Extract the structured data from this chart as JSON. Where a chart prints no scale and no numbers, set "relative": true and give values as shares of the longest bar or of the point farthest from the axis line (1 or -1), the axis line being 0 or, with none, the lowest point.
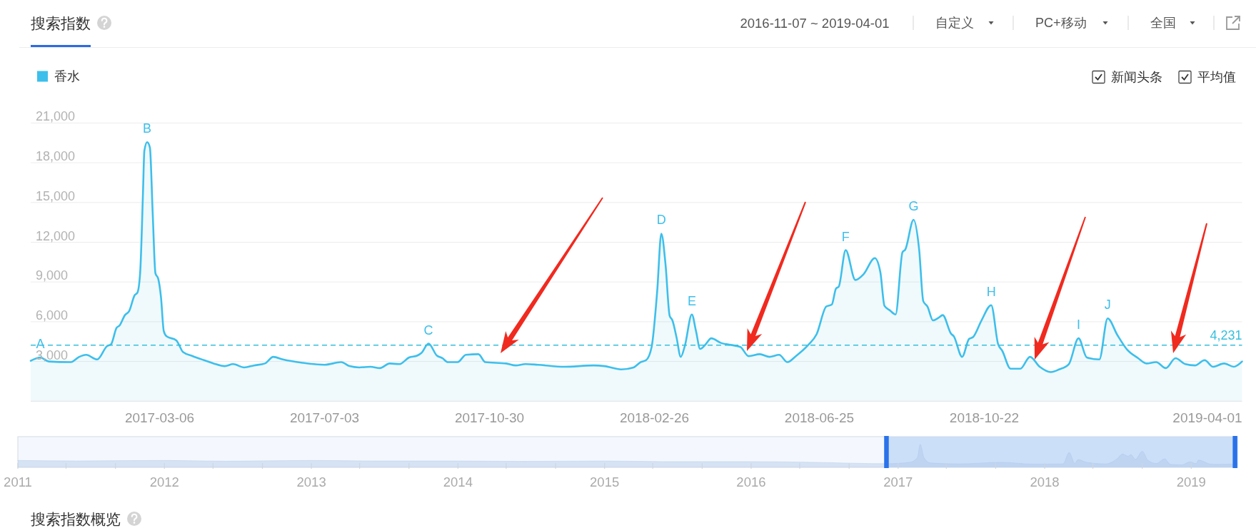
{
  "chart_data": [
    {
      "type": "area",
      "title": "搜索指数",
      "subtitle": "2016-11-07 ~ 2019-04-01",
      "annotations": [
        "自定义",
        "PC+移动",
        "全国",
        "新闻头条",
        "平均值",
        {
          "text": "A",
          "x": "2016-12-10",
          "y": 3300
        },
        {
          "text": "B",
          "x": "2017-02-25",
          "y": 19550
        },
        {
          "text": "C",
          "x": "2017-09-16",
          "y": 4350
        },
        {
          "text": "D",
          "x": "2018-03-03",
          "y": 12650
        },
        {
          "text": "E",
          "x": "2018-03-25",
          "y": 6550
        },
        {
          "text": "F",
          "x": "2018-07-14",
          "y": 11400
        },
        {
          "text": "G",
          "x": "2018-09-01",
          "y": 13700
        },
        {
          "text": "H",
          "x": "2018-10-27",
          "y": 7250
        },
        {
          "text": "I",
          "x": "2018-12-29",
          "y": 4750
        },
        {
          "text": "J",
          "x": "2019-01-19",
          "y": 6250
        }
      ],
      "x": [
        "2016-12-03",
        "2016-12-10",
        "2016-12-16",
        "2017-01-01",
        "2017-01-07",
        "2017-01-12",
        "2017-01-20",
        "2017-01-27",
        "2017-01-30",
        "2017-02-03",
        "2017-02-05",
        "2017-02-09",
        "2017-02-12",
        "2017-02-16",
        "2017-02-18",
        "2017-02-20",
        "2017-02-22",
        "2017-02-23",
        "2017-02-25",
        "2017-02-27",
        "2017-03-01",
        "2017-03-03",
        "2017-03-05",
        "2017-03-07",
        "2017-03-09",
        "2017-03-11",
        "2017-03-18",
        "2017-03-23",
        "2017-03-30",
        "2017-04-07",
        "2017-04-14",
        "2017-04-22",
        "2017-04-28",
        "2017-05-06",
        "2017-05-13",
        "2017-05-21",
        "2017-05-27",
        "2017-06-03",
        "2017-06-17",
        "2017-07-03",
        "2017-07-15",
        "2017-07-21",
        "2017-07-28",
        "2017-08-05",
        "2017-08-12",
        "2017-08-19",
        "2017-08-26",
        "2017-09-02",
        "2017-09-08",
        "2017-09-11",
        "2017-09-16",
        "2017-09-22",
        "2017-09-26",
        "2017-09-30",
        "2017-10-07",
        "2017-10-13",
        "2017-10-22",
        "2017-10-27",
        "2017-11-11",
        "2017-11-18",
        "2017-11-25",
        "2017-12-04",
        "2017-12-23",
        "2018-01-13",
        "2018-01-21",
        "2018-02-02",
        "2018-02-11",
        "2018-02-16",
        "2018-02-20",
        "2018-02-24",
        "2018-02-28",
        "2018-03-03",
        "2018-03-06",
        "2018-03-09",
        "2018-03-11",
        "2018-03-14",
        "2018-03-17",
        "2018-03-20",
        "2018-03-25",
        "2018-03-28",
        "2018-03-31",
        "2018-04-04",
        "2018-04-08",
        "2018-04-15",
        "2018-04-22",
        "2018-04-29",
        "2018-05-05",
        "2018-05-13",
        "2018-05-20",
        "2018-05-27",
        "2018-06-02",
        "2018-06-08",
        "2018-06-17",
        "2018-06-23",
        "2018-06-30",
        "2018-07-04",
        "2018-07-07",
        "2018-07-09",
        "2018-07-14",
        "2018-07-21",
        "2018-07-27",
        "2018-08-04",
        "2018-08-08",
        "2018-08-11",
        "2018-08-15",
        "2018-08-19",
        "2018-08-24",
        "2018-08-26",
        "2018-09-01",
        "2018-09-05",
        "2018-09-08",
        "2018-09-11",
        "2018-09-15",
        "2018-09-19",
        "2018-09-22",
        "2018-09-28",
        "2018-09-30",
        "2018-10-06",
        "2018-10-11",
        "2018-10-14",
        "2018-10-20",
        "2018-10-27",
        "2018-11-01",
        "2018-11-04",
        "2018-11-10",
        "2018-11-17",
        "2018-11-24",
        "2018-12-01",
        "2018-12-09",
        "2018-12-15",
        "2018-12-22",
        "2018-12-29",
        "2019-01-04",
        "2019-01-13",
        "2019-01-19",
        "2019-01-26",
        "2019-02-02",
        "2019-02-10",
        "2019-02-16",
        "2019-02-23",
        "2019-03-02",
        "2019-03-09",
        "2019-03-16",
        "2019-03-23",
        "2019-03-30",
        "2019-04-05",
        "2019-04-13",
        "2019-04-20",
        "2019-04-26"
      ],
      "series": [
        {
          "name": "香水",
          "color": "#3dbfeb",
          "values": [
            3050,
            3300,
            3000,
            2950,
            3350,
            3500,
            3150,
            4150,
            4300,
            5550,
            5700,
            6500,
            6800,
            8000,
            8200,
            9750,
            15700,
            18900,
            19550,
            19150,
            14250,
            9650,
            9250,
            7850,
            5300,
            4900,
            4600,
            3700,
            3400,
            3100,
            2850,
            2650,
            2800,
            2550,
            2700,
            2850,
            3350,
            3150,
            2900,
            2750,
            2950,
            2650,
            2550,
            2600,
            2500,
            2850,
            2800,
            3300,
            3450,
            3650,
            4350,
            3450,
            3250,
            2950,
            2950,
            3500,
            3550,
            2950,
            2850,
            2700,
            2800,
            2750,
            2600,
            2700,
            2650,
            2400,
            2550,
            2950,
            3100,
            4100,
            8300,
            12650,
            10350,
            6450,
            6100,
            4800,
            3350,
            4200,
            6550,
            5300,
            3950,
            4300,
            4750,
            4400,
            4250,
            4100,
            3400,
            3550,
            3350,
            3500,
            2950,
            3400,
            4250,
            5050,
            7150,
            7300,
            8500,
            8650,
            11400,
            9150,
            9600,
            10800,
            9750,
            7200,
            6850,
            6550,
            11250,
            11450,
            13700,
            11450,
            7550,
            7150,
            6100,
            6300,
            6500,
            5100,
            4900,
            3350,
            4700,
            4850,
            6100,
            7250,
            4300,
            3800,
            2450,
            2450,
            3350,
            2600,
            2200,
            2400,
            2800,
            4750,
            3300,
            3150,
            6250,
            5000,
            3900,
            3250,
            2850,
            2950,
            2500,
            3250,
            2800,
            2700,
            3100,
            2600,
            2850,
            2600,
            3000
          ]
        }
      ],
      "xlim": [
        "2016-12-03",
        "2019-04-26"
      ],
      "xticks": [
        "2017-03-06",
        "2017-07-03",
        "2017-10-30",
        "2018-02-26",
        "2018-06-25",
        "2018-10-22",
        "2019-04-01"
      ],
      "ylim": [
        0,
        21000
      ],
      "yticks": [
        {
          "value": 3000,
          "label": "3,000"
        },
        {
          "value": 6000,
          "label": "6,000"
        },
        {
          "value": 9000,
          "label": "9,000"
        },
        {
          "value": 12000,
          "label": "12,000"
        },
        {
          "value": 15000,
          "label": "15,000"
        },
        {
          "value": 18000,
          "label": "18,000"
        },
        {
          "value": 21000,
          "label": "21,000"
        }
      ],
      "grid": "y",
      "legend": "top left",
      "ref_lines": [
        {
          "axis": "y",
          "value": 4231,
          "label": "4,231",
          "color": "#37bfdc",
          "line_style": "dashed"
        }
      ]
    },
    {
      "type": "area",
      "relative": true,
      "color": "#a9c3e6",
      "annotations": [
        "搜索指数概览"
      ],
      "x": [
        "2011-01-01",
        "2011-06-01",
        "2012-01-01",
        "2012-06-01",
        "2013-01-01",
        "2013-06-01",
        "2014-01-01",
        "2014-06-01",
        "2015-01-01",
        "2015-06-01",
        "2016-01-01",
        "2016-06-01",
        "2016-12-03",
        "2017-01-30",
        "2017-02-18",
        "2017-02-25",
        "2017-03-07",
        "2017-03-23",
        "2017-06-01",
        "2017-09-16",
        "2017-12-04",
        "2018-02-16",
        "2018-03-03",
        "2018-03-17",
        "2018-03-25",
        "2018-04-15",
        "2018-06-02",
        "2018-06-30",
        "2018-07-14",
        "2018-07-27",
        "2018-08-04",
        "2018-08-15",
        "2018-09-01",
        "2018-09-15",
        "2018-10-06",
        "2018-10-27",
        "2018-11-10",
        "2018-12-09",
        "2018-12-29",
        "2019-01-13",
        "2019-01-19",
        "2019-02-16",
        "2019-03-02",
        "2019-04-26"
      ],
      "values": [
        0.3,
        0.28,
        0.3,
        0.27,
        0.3,
        0.28,
        0.28,
        0.26,
        0.28,
        0.25,
        0.25,
        0.22,
        0.16,
        0.22,
        0.42,
        1,
        0.4,
        0.19,
        0.15,
        0.22,
        0.14,
        0.15,
        0.65,
        0.17,
        0.34,
        0.22,
        0.15,
        0.37,
        0.58,
        0.49,
        0.55,
        0.35,
        0.7,
        0.31,
        0.17,
        0.37,
        0.13,
        0.11,
        0.24,
        0.16,
        0.32,
        0.15,
        0.13,
        0.15
      ],
      "xlim": [
        "2011-01-01",
        "2019-04-26"
      ],
      "xticks": [
        "2011",
        {
          "value": "2011-05",
          "label": null
        },
        {
          "value": "2011-09",
          "label": null
        },
        "2012",
        {
          "value": "2012-05",
          "label": null
        },
        {
          "value": "2012-09",
          "label": null
        },
        "2013",
        {
          "value": "2013-05",
          "label": null
        },
        {
          "value": "2013-09",
          "label": null
        },
        "2014",
        {
          "value": "2014-05",
          "label": null
        },
        {
          "value": "2014-09",
          "label": null
        },
        "2015",
        {
          "value": "2015-05",
          "label": null
        },
        {
          "value": "2015-09",
          "label": null
        },
        "2016",
        {
          "value": "2016-05",
          "label": null
        },
        {
          "value": "2016-09",
          "label": null
        },
        "2017",
        {
          "value": "2017-05",
          "label": null
        },
        {
          "value": "2017-09",
          "label": null
        },
        "2018",
        {
          "value": "2018-05",
          "label": null
        },
        {
          "value": "2018-09",
          "label": null
        },
        "2019"
      ],
      "bands": [
        {
          "axis": "x",
          "from": "2016-12-03",
          "to": "2019-04-20",
          "color": "#c7dcf8"
        }
      ],
      "ref_lines": [
        {
          "axis": "x",
          "value": "2016-12-03",
          "color": "#2a72ea"
        },
        {
          "axis": "x",
          "value": "2019-04-20",
          "color": "#2a72ea"
        }
      ]
    }
  ]
}
